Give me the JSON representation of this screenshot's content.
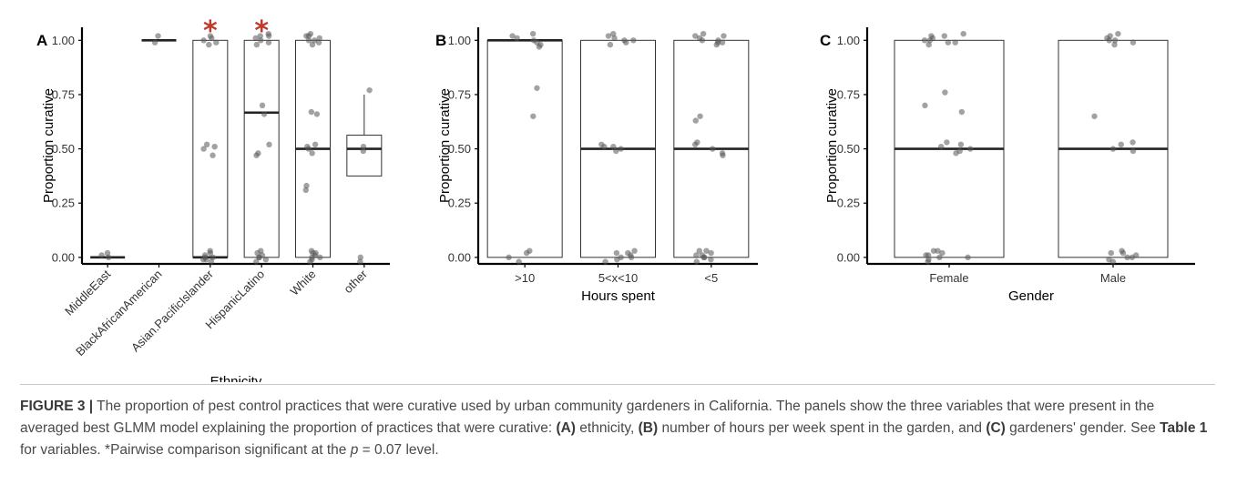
{
  "chart_data": [
    {
      "panel_label": "A",
      "type": "box",
      "xlabel": "Ethnicity",
      "ylabel": "Proportion curative",
      "ylim": [
        -0.03,
        1.06
      ],
      "yticks": [
        "0.00",
        "0.25",
        "0.50",
        "0.75",
        "1.00"
      ],
      "grid": false,
      "categories": [
        "MiddleEast",
        "BlackAfricanAmerican",
        "Asian.PacificIslander",
        "HispanicLatino",
        "White",
        "other"
      ],
      "significance_marker": {
        "symbol": "*",
        "color": "#c0392b",
        "categories": [
          "Asian.PacificIslander",
          "HispanicLatino"
        ]
      },
      "boxes": [
        {
          "category": "MiddleEast",
          "q1": 0,
          "median": 0,
          "q3": 0,
          "whisker_low": 0,
          "whisker_high": 0,
          "points": [
            0.02,
            0.0,
            0.01
          ]
        },
        {
          "category": "BlackAfricanAmerican",
          "q1": 1,
          "median": 1,
          "q3": 1,
          "whisker_low": 1,
          "whisker_high": 1,
          "points": [
            0.99,
            1.02
          ]
        },
        {
          "category": "Asian.PacificIslander",
          "q1": 0,
          "median": 0,
          "q3": 1,
          "whisker_low": 0,
          "whisker_high": 1,
          "points": [
            1.02,
            1.0,
            0.99,
            1.01,
            0.98,
            0.52,
            0.51,
            0.47,
            0.5,
            0.02,
            -0.01,
            0.0,
            0.01,
            -0.02,
            0.03,
            0.0,
            -0.01
          ]
        },
        {
          "category": "HispanicLatino",
          "q1": 0,
          "median": 0.667,
          "q3": 1,
          "whisker_low": 0,
          "whisker_high": 1,
          "points": [
            1.03,
            1.02,
            1.01,
            1.0,
            0.99,
            0.98,
            1.02,
            0.7,
            0.66,
            0.48,
            0.47,
            0.52,
            0.03,
            0.02,
            0.01,
            0.0,
            -0.02,
            -0.01,
            0.0
          ]
        },
        {
          "category": "White",
          "q1": 0,
          "median": 0.5,
          "q3": 1,
          "whisker_low": 0,
          "whisker_high": 1,
          "points": [
            1.03,
            1.02,
            1.01,
            1.0,
            0.99,
            0.98,
            1.02,
            1.0,
            0.67,
            0.66,
            0.52,
            0.51,
            0.5,
            0.48,
            0.33,
            0.31,
            0.03,
            0.02,
            0.01,
            0.0,
            -0.02,
            -0.01,
            0.02,
            0.0
          ]
        },
        {
          "category": "other",
          "q1": 0.375,
          "median": 0.5,
          "q3": 0.563,
          "whisker_low": 0.375,
          "whisker_high": 0.75,
          "points": [
            0.77,
            0.51,
            0.49,
            0.0,
            -0.02
          ]
        }
      ]
    },
    {
      "panel_label": "B",
      "type": "box",
      "xlabel": "Hours spent",
      "ylabel": "Proportion curative",
      "ylim": [
        -0.03,
        1.06
      ],
      "yticks": [
        "0.00",
        "0.25",
        "0.50",
        "0.75",
        "1.00"
      ],
      "grid": false,
      "categories": [
        ">10",
        "5<x<10",
        "<5"
      ],
      "boxes": [
        {
          "category": ">10",
          "q1": 0,
          "median": 1,
          "q3": 1,
          "whisker_low": 0,
          "whisker_high": 1,
          "points": [
            1.03,
            1.02,
            1.01,
            1.0,
            0.99,
            0.98,
            0.97,
            0.78,
            0.65,
            0.03,
            0.02,
            0.0,
            -0.02
          ]
        },
        {
          "category": "5<x<10",
          "q1": 0,
          "median": 0.5,
          "q3": 1,
          "whisker_low": 0,
          "whisker_high": 1,
          "points": [
            1.03,
            1.02,
            1.01,
            1.0,
            0.99,
            0.98,
            1.0,
            0.52,
            0.51,
            0.5,
            0.49,
            0.51,
            0.03,
            0.02,
            0.01,
            0.0,
            -0.01,
            -0.02,
            0.02,
            0.0
          ]
        },
        {
          "category": "<5",
          "q1": 0,
          "median": 0.5,
          "q3": 1,
          "whisker_low": 0,
          "whisker_high": 1,
          "points": [
            1.03,
            1.02,
            1.01,
            1.0,
            0.99,
            0.98,
            1.02,
            1.0,
            0.99,
            0.65,
            0.63,
            0.53,
            0.52,
            0.5,
            0.48,
            0.47,
            0.03,
            0.02,
            0.01,
            0.0,
            -0.01,
            -0.02,
            0.03,
            0.01,
            0.0
          ]
        }
      ]
    },
    {
      "panel_label": "C",
      "type": "box",
      "xlabel": "Gender",
      "ylabel": "Proportion curative",
      "ylim": [
        -0.03,
        1.06
      ],
      "yticks": [
        "0.00",
        "0.25",
        "0.50",
        "0.75",
        "1.00"
      ],
      "grid": false,
      "categories": [
        "Female",
        "Male"
      ],
      "boxes": [
        {
          "category": "Female",
          "q1": 0,
          "median": 0.5,
          "q3": 1,
          "whisker_low": 0,
          "whisker_high": 1,
          "points": [
            1.03,
            1.02,
            1.01,
            1.0,
            0.99,
            0.98,
            1.02,
            1.0,
            0.99,
            0.76,
            0.7,
            0.67,
            0.53,
            0.52,
            0.51,
            0.5,
            0.49,
            0.48,
            0.03,
            0.02,
            0.01,
            0.0,
            -0.01,
            -0.02,
            0.03,
            0.0,
            0.01
          ]
        },
        {
          "category": "Male",
          "q1": 0,
          "median": 0.5,
          "q3": 1,
          "whisker_low": 0,
          "whisker_high": 1,
          "points": [
            1.03,
            1.02,
            1.01,
            1.0,
            0.99,
            0.98,
            1.0,
            0.65,
            0.53,
            0.52,
            0.5,
            0.49,
            0.03,
            0.02,
            0.01,
            0.0,
            -0.01,
            -0.02,
            0.02,
            0.0
          ]
        }
      ]
    }
  ],
  "caption": {
    "figure_label": "FIGURE 3 |",
    "text_1": " The proportion of pest control practices that were curative used by urban community gardeners in California. The panels show the three variables that were present in the averaged best GLMM model explaining the proportion of practices that were curative: ",
    "a_label": "(A)",
    "text_2": " ethnicity, ",
    "b_label": "(B)",
    "text_3": " number of hours per week spent in the garden, and ",
    "c_label": "(C)",
    "text_4": " gardeners' gender. See ",
    "table_ref": "Table 1",
    "text_5": " for variables. *Pairwise comparison significant at the ",
    "p_symbol": "p",
    "text_6": " = 0.07 level."
  },
  "colors": {
    "point": "#555555",
    "significance": "#c0392b",
    "axis": "#000000",
    "caption_text": "#4a4a4a"
  }
}
